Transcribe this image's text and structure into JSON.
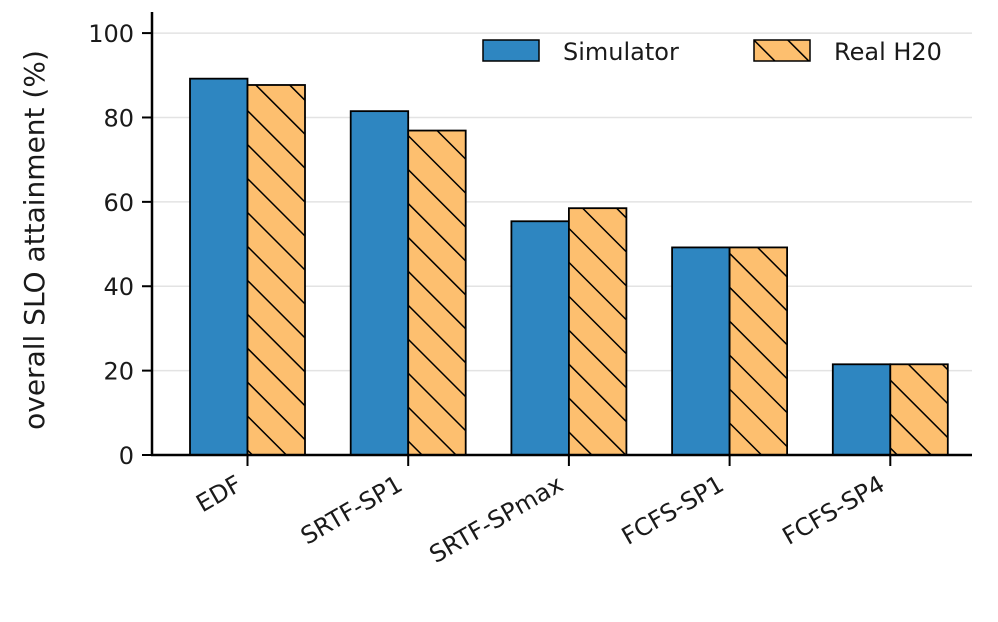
{
  "chart_data": {
    "type": "bar",
    "title": "",
    "xlabel": "",
    "ylabel": "overall SLO attainment (%)",
    "categories": [
      "EDF",
      "SRTF-SP1",
      "SRTF-SPmax",
      "FCFS-SP1",
      "FCFS-SP4"
    ],
    "series": [
      {
        "name": "Simulator",
        "values": [
          89.2,
          81.5,
          55.4,
          49.2,
          21.5
        ],
        "color": "#2e86c1",
        "hatch": "none"
      },
      {
        "name": "Real H20",
        "values": [
          87.7,
          76.9,
          58.5,
          49.2,
          21.5
        ],
        "color": "#fdbf6f",
        "hatch": "diagonal"
      }
    ],
    "ylim": [
      0,
      105
    ],
    "yticks": [
      0,
      20,
      40,
      60,
      80,
      100
    ],
    "grid": "horizontal",
    "legend_position": "top-right"
  }
}
